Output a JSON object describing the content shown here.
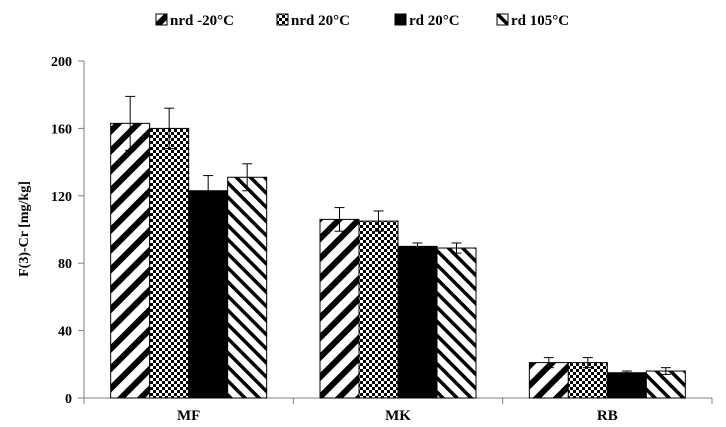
{
  "chart_data": {
    "type": "bar",
    "title": "",
    "xlabel": "",
    "ylabel": "F(3)-Cr [mg/kg]",
    "ylim": [
      0,
      200
    ],
    "yticks": [
      0,
      40,
      80,
      120,
      160,
      200
    ],
    "grid": false,
    "legend_position": "top",
    "categories": [
      "MF",
      "MK",
      "RB"
    ],
    "series": [
      {
        "name": "nrd -20°C",
        "pattern": "diag-wide",
        "values": [
          163,
          106,
          21
        ],
        "errors": [
          16,
          7,
          3
        ]
      },
      {
        "name": "nrd 20°C",
        "pattern": "checker",
        "values": [
          160,
          105,
          21
        ],
        "errors": [
          12,
          6,
          3
        ]
      },
      {
        "name": "rd 20°C",
        "pattern": "solid",
        "values": [
          123,
          90,
          15
        ],
        "errors": [
          9,
          2,
          1
        ]
      },
      {
        "name": "rd 105°C",
        "pattern": "back-diag",
        "values": [
          131,
          89,
          16
        ],
        "errors": [
          8,
          3,
          2
        ]
      }
    ]
  }
}
